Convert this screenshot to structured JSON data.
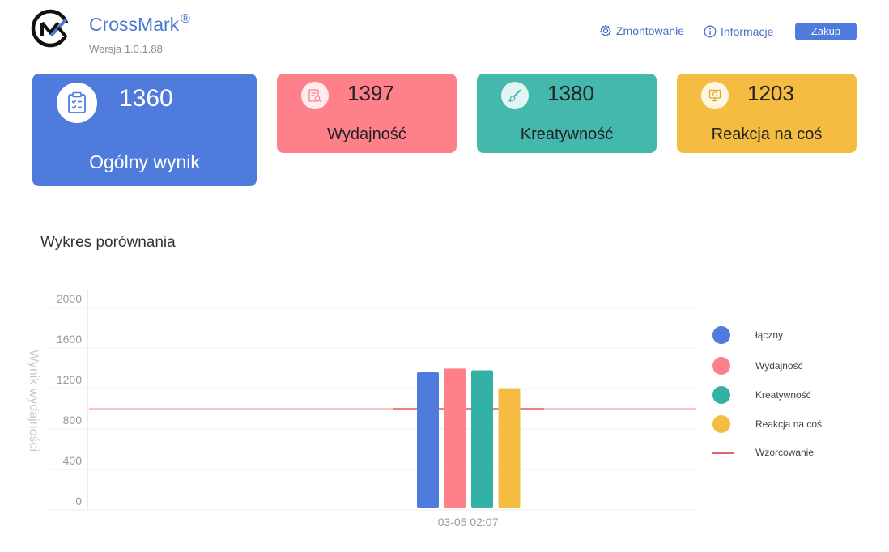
{
  "header": {
    "app_name": "CrossMark",
    "reg_mark": "®",
    "version": "Wersja 1.0.1.88",
    "mount_label": "Zmontowanie",
    "info_label": "Informacje",
    "buy_label": "Zakup"
  },
  "cards": {
    "overall": {
      "score": "1360",
      "label": "Ogólny wynik",
      "icon": "clipboard-check-icon",
      "color": "#4f7bdc"
    },
    "performance": {
      "score": "1397",
      "label": "Wydajność",
      "icon": "document-search-icon",
      "color": "#fd808b"
    },
    "creativity": {
      "score": "1380",
      "label": "Kreatywność",
      "icon": "paintbrush-icon",
      "color": "#45b8ad"
    },
    "reaction": {
      "score": "1203",
      "label": "Reakcja na coś",
      "icon": "presentation-board-icon",
      "color": "#f4bd42"
    }
  },
  "chart_title": "Wykres porównania",
  "chart_data": {
    "type": "bar",
    "categories": [
      "03-05 02:07"
    ],
    "ylabel": "Wynik wydajności",
    "xlabel": "",
    "ylim": [
      0,
      2000
    ],
    "yticks": [
      "0",
      "400",
      "800",
      "1200",
      "1600",
      "2000"
    ],
    "grid": true,
    "legend_position": "right",
    "series": [
      {
        "name": "łączny",
        "values": [
          1360
        ],
        "color": "#4f7bdc"
      },
      {
        "name": "Wydajność",
        "values": [
          1397
        ],
        "color": "#fd808b"
      },
      {
        "name": "Kreatywność",
        "values": [
          1380
        ],
        "color": "#34b1a6"
      },
      {
        "name": "Reakcja na coś",
        "values": [
          1203
        ],
        "color": "#f4bd42"
      }
    ],
    "reference_line": {
      "name": "Wzorcowanie",
      "value": 1000,
      "color": "#e06666"
    }
  }
}
